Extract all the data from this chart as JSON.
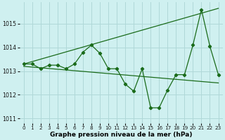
{
  "title": "Graphe pression niveau de la mer (hPa)",
  "background_color": "#cff0f0",
  "grid_color": "#b0d8d8",
  "line_color": "#1a6b1a",
  "xlim": [
    -0.5,
    23.5
  ],
  "ylim": [
    1010.8,
    1015.9
  ],
  "yticks": [
    1011,
    1012,
    1013,
    1014,
    1015
  ],
  "xticks": [
    0,
    1,
    2,
    3,
    4,
    5,
    6,
    7,
    8,
    9,
    10,
    11,
    12,
    13,
    14,
    15,
    16,
    17,
    18,
    19,
    20,
    21,
    22,
    23
  ],
  "main_x": [
    0,
    1,
    2,
    3,
    4,
    5,
    6,
    7,
    8,
    9,
    10,
    11,
    12,
    13,
    14,
    15,
    16,
    17,
    18,
    19,
    20,
    21,
    22,
    23
  ],
  "main_y": [
    1013.3,
    1013.3,
    1013.1,
    1013.25,
    1013.25,
    1013.1,
    1013.3,
    1013.8,
    1014.1,
    1013.75,
    1013.1,
    1013.1,
    1012.45,
    1012.15,
    1013.1,
    1011.45,
    1011.45,
    1012.2,
    1012.85,
    1012.85,
    1014.1,
    1015.6,
    1014.05,
    1012.85
  ],
  "upper_line_x": [
    0,
    23
  ],
  "upper_line_y": [
    1013.3,
    1015.65
  ],
  "lower_line_x": [
    0,
    23
  ],
  "lower_line_y": [
    1013.2,
    1012.5
  ]
}
